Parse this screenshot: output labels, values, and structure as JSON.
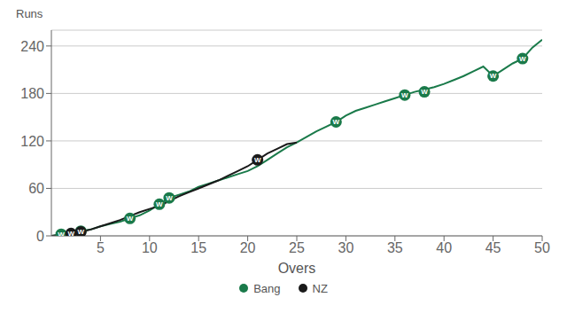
{
  "chart_data": {
    "type": "line",
    "xlabel": "Overs",
    "ylabel": "Runs",
    "xlim": [
      0,
      50
    ],
    "ylim": [
      0,
      260
    ],
    "xticks": [
      5,
      10,
      15,
      20,
      25,
      30,
      35,
      40,
      45,
      50
    ],
    "yticks": [
      0,
      60,
      120,
      180,
      240
    ],
    "grid": "y",
    "legend": "bottom",
    "series": [
      {
        "name": "Bang",
        "color": "#1a7a4a",
        "x": [
          0,
          1,
          2,
          3,
          4,
          5,
          6,
          7,
          8,
          9,
          10,
          11,
          12,
          13,
          14,
          15,
          16,
          17,
          18,
          19,
          20,
          21,
          22,
          23,
          24,
          25,
          26,
          27,
          28,
          29,
          30,
          31,
          32,
          33,
          34,
          35,
          36,
          37,
          38,
          39,
          40,
          41,
          42,
          43,
          44,
          45,
          46,
          47,
          48,
          49,
          50
        ],
        "values": [
          0,
          2,
          4,
          6,
          8,
          12,
          15,
          18,
          22,
          26,
          32,
          40,
          48,
          52,
          56,
          62,
          66,
          70,
          74,
          78,
          82,
          88,
          96,
          104,
          112,
          118,
          125,
          132,
          138,
          144,
          152,
          158,
          162,
          166,
          170,
          174,
          178,
          182,
          185,
          188,
          192,
          197,
          202,
          208,
          214,
          202,
          210,
          218,
          224,
          238,
          248
        ],
        "wickets": {
          "x": [
            1,
            3,
            8,
            11,
            12,
            29,
            36,
            38,
            45,
            48
          ],
          "values": [
            2,
            6,
            22,
            40,
            48,
            144,
            178,
            182,
            202,
            224
          ],
          "label": "W"
        }
      },
      {
        "name": "NZ",
        "color": "#1a1a1a",
        "x": [
          0,
          1,
          2,
          3,
          4,
          5,
          6,
          7,
          8,
          9,
          10,
          11,
          12,
          13,
          14,
          15,
          16,
          17,
          18,
          19,
          20,
          21,
          22,
          23,
          24,
          25
        ],
        "values": [
          0,
          1,
          3,
          5,
          8,
          12,
          16,
          20,
          25,
          30,
          34,
          38,
          44,
          50,
          55,
          60,
          65,
          70,
          76,
          82,
          88,
          96,
          104,
          110,
          116,
          118
        ],
        "wickets": {
          "x": [
            2,
            3,
            21
          ],
          "values": [
            3,
            5,
            96
          ],
          "label": "W"
        }
      }
    ]
  }
}
